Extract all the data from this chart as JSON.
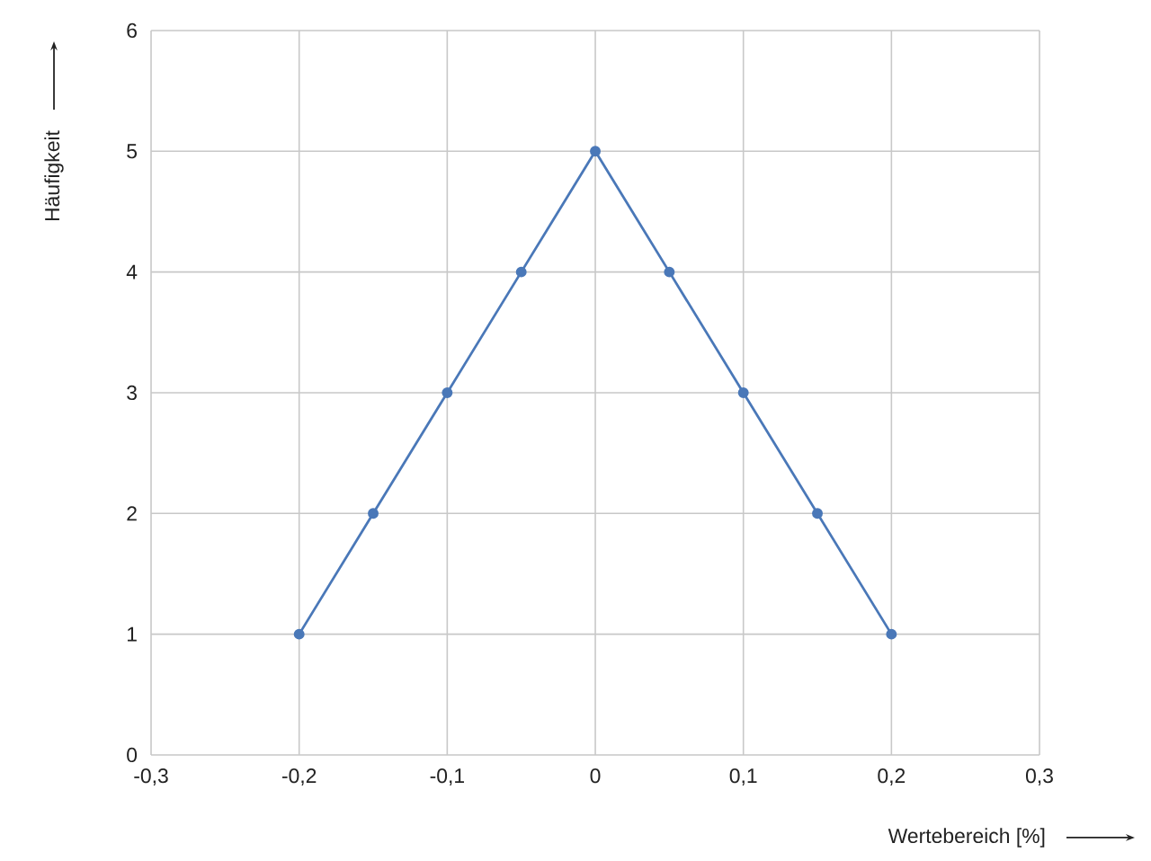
{
  "chart_data": {
    "type": "line",
    "xlabel": "Wertebereich [%]",
    "ylabel": "Häufigkeit",
    "x": [
      -0.2,
      -0.15,
      -0.1,
      -0.05,
      0,
      0.05,
      0.1,
      0.15,
      0.2
    ],
    "series": [
      {
        "color": "#4a78b8",
        "values": [
          1,
          2,
          3,
          4,
          5,
          4,
          3,
          2,
          1
        ]
      }
    ],
    "xlim": [
      -0.3,
      0.3
    ],
    "xticks": [
      {
        "value": -0.3,
        "label": "-0,3"
      },
      {
        "value": -0.2,
        "label": "-0,2"
      },
      {
        "value": -0.1,
        "label": "-0,1"
      },
      0,
      {
        "value": 0.1,
        "label": "0,1"
      },
      {
        "value": 0.2,
        "label": "0,2"
      },
      {
        "value": 0.3,
        "label": "0,3"
      }
    ],
    "ylim": [
      0,
      6
    ],
    "yticks": [
      0,
      1,
      2,
      3,
      4,
      5,
      6
    ],
    "grid": true,
    "marker": "circle",
    "line_style": "solid"
  }
}
